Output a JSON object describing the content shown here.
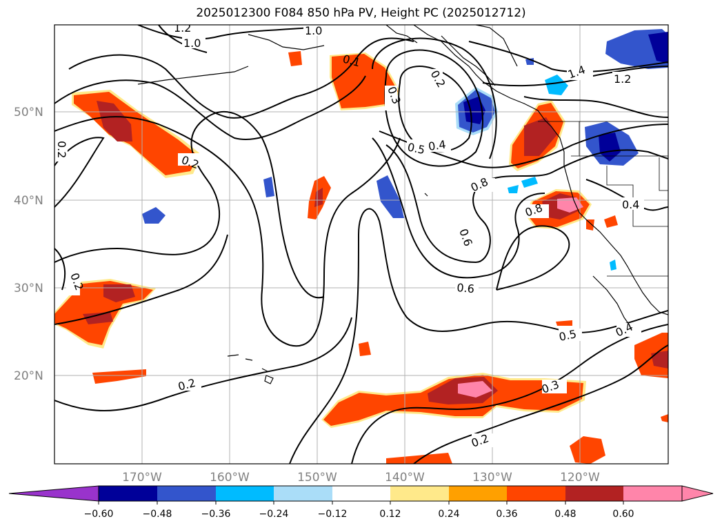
{
  "title": "2025012300 F084 850 hPa PV, Height PC (2025012712)",
  "map": {
    "lat_labels": [
      "50°N",
      "40°N",
      "30°N",
      "20°N"
    ],
    "lon_labels": [
      "170°W",
      "160°W",
      "150°W",
      "140°W",
      "130°W",
      "120°W"
    ],
    "contour_labels": [
      "1.2",
      "1.0",
      "1.0",
      "0.1",
      "0.3",
      "0.2",
      "1.4",
      "1.2",
      "0.2",
      "0.2",
      "0.5",
      "0.4",
      "0.8",
      "0.8",
      "0.4",
      "0.6",
      "0.2",
      "0.6",
      "0.5",
      "0.4",
      "0.2",
      "0.3",
      "0.2"
    ],
    "colors": {
      "land_outline": "#000000",
      "gridline": "#b0b0b0",
      "contour": "#000000"
    }
  },
  "colorbar": {
    "ticks": [
      "−0.60",
      "−0.48",
      "−0.36",
      "−0.24",
      "−0.12",
      "0.12",
      "0.24",
      "0.36",
      "0.48",
      "0.60"
    ],
    "colors": [
      "#9933cc",
      "#000099",
      "#3355cc",
      "#00bbff",
      "#aaddf8",
      "#ffffff",
      "#ffe98a",
      "#ffa000",
      "#ff4500",
      "#b22222",
      "#ff85aa"
    ]
  }
}
